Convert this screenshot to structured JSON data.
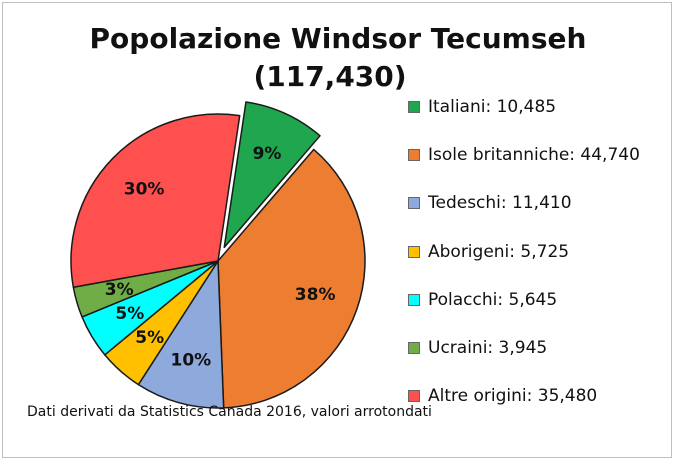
{
  "chart_data": {
    "type": "pie",
    "title": "Popolazione Windsor Tecumseh",
    "subtitle": "(117,430)",
    "slices": [
      {
        "label": "Italiani: 10,485",
        "value": 10485,
        "percent_label": "9%",
        "color": "#1fa64e",
        "exploded": true
      },
      {
        "label": "Isole britanniche: 44,740",
        "value": 44740,
        "percent_label": "38%",
        "color": "#ed7d31",
        "exploded": false
      },
      {
        "label": "Tedeschi: 11,410",
        "value": 11410,
        "percent_label": "10%",
        "color": "#8ea9db",
        "exploded": false
      },
      {
        "label": "Aborigeni: 5,725",
        "value": 5725,
        "percent_label": "5%",
        "color": "#ffc000",
        "exploded": false
      },
      {
        "label": "Polacchi: 5,645",
        "value": 5645,
        "percent_label": "5%",
        "color": "#00ffff",
        "exploded": false
      },
      {
        "label": "Ucraini: 3,945",
        "value": 3945,
        "percent_label": "3%",
        "color": "#70ad47",
        "exploded": false
      },
      {
        "label": "Altre origini: 35,480",
        "value": 35480,
        "percent_label": "30%",
        "color": "#ff5050",
        "exploded": false
      }
    ],
    "legend_position": "right",
    "note": "Dati derivati da Statistics Canada 2016, valori arrotondati"
  }
}
